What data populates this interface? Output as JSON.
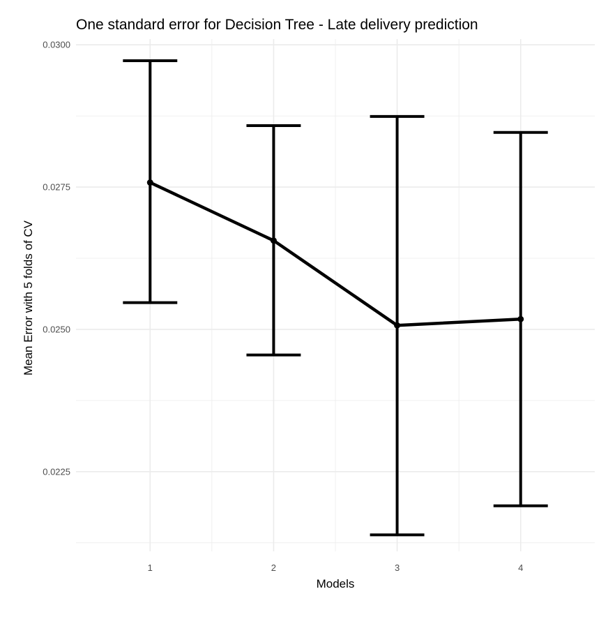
{
  "chart_data": {
    "type": "line",
    "title": "One standard error for Decision Tree - Late delivery prediction",
    "xlabel": "Models",
    "ylabel": "Mean Error with 5 folds of CV",
    "categories": [
      "1",
      "2",
      "3",
      "4"
    ],
    "series": [
      {
        "values": [
          0.02758,
          0.02656,
          0.02507,
          0.02518
        ],
        "error_lower": [
          0.02547,
          0.02455,
          0.02139,
          0.0219
        ],
        "error_upper": [
          0.02972,
          0.02858,
          0.02874,
          0.02846
        ],
        "color": "#000000"
      }
    ],
    "y_ticks": [
      "0.0300",
      "0.0275",
      "0.0250",
      "0.0225"
    ],
    "ylim": [
      0.0211,
      0.0301
    ],
    "grid": true,
    "legend": "none"
  }
}
